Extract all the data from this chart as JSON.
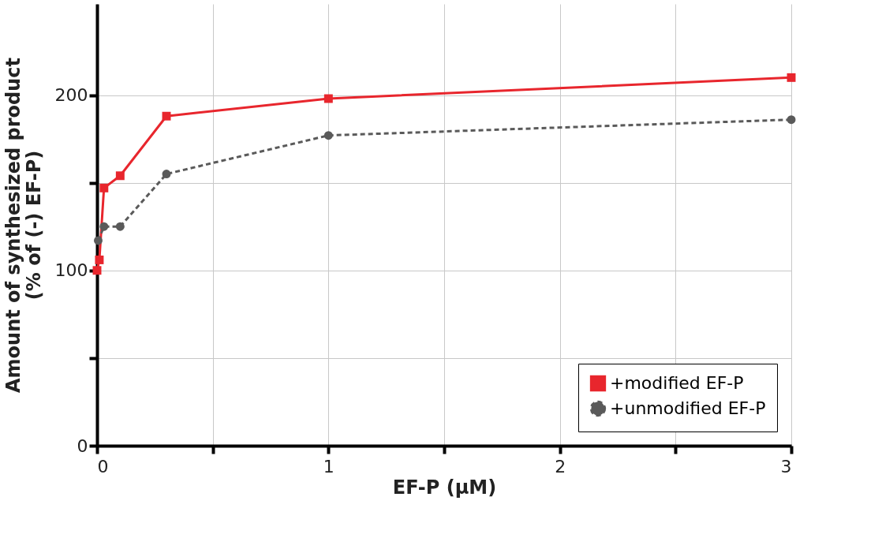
{
  "chart_data": {
    "type": "line",
    "xlabel": "EF-P (μM)",
    "ylabel": "Amount of synthesized product\n(% of (-) EF-P)",
    "xlim": [
      0,
      3
    ],
    "xticks": [
      0,
      {
        "value": 0.5,
        "label": null
      },
      1,
      {
        "value": 1.5,
        "label": null
      },
      2,
      {
        "value": 2.5,
        "label": null
      },
      3
    ],
    "ylim": [
      0,
      252
    ],
    "yticks": [
      0,
      {
        "value": 50,
        "label": null
      },
      100,
      {
        "value": 150,
        "label": null
      },
      200
    ],
    "grid": true,
    "legend": "bottom right",
    "series": [
      {
        "name": "+modified EF-P",
        "color": "#e8262d",
        "marker": "square",
        "line_style": "solid",
        "x": [
          0,
          0.01,
          0.03,
          0.1,
          0.3,
          1,
          3
        ],
        "values": [
          100,
          106,
          147,
          154,
          188,
          198,
          210
        ]
      },
      {
        "name": "+unmodified EF-P",
        "color": "#5a5a5a",
        "marker": "circle",
        "line_style": "dashed",
        "x": [
          0.005,
          0.03,
          0.1,
          0.3,
          1,
          3
        ],
        "values": [
          117,
          125,
          125,
          155,
          177,
          186
        ]
      }
    ]
  }
}
